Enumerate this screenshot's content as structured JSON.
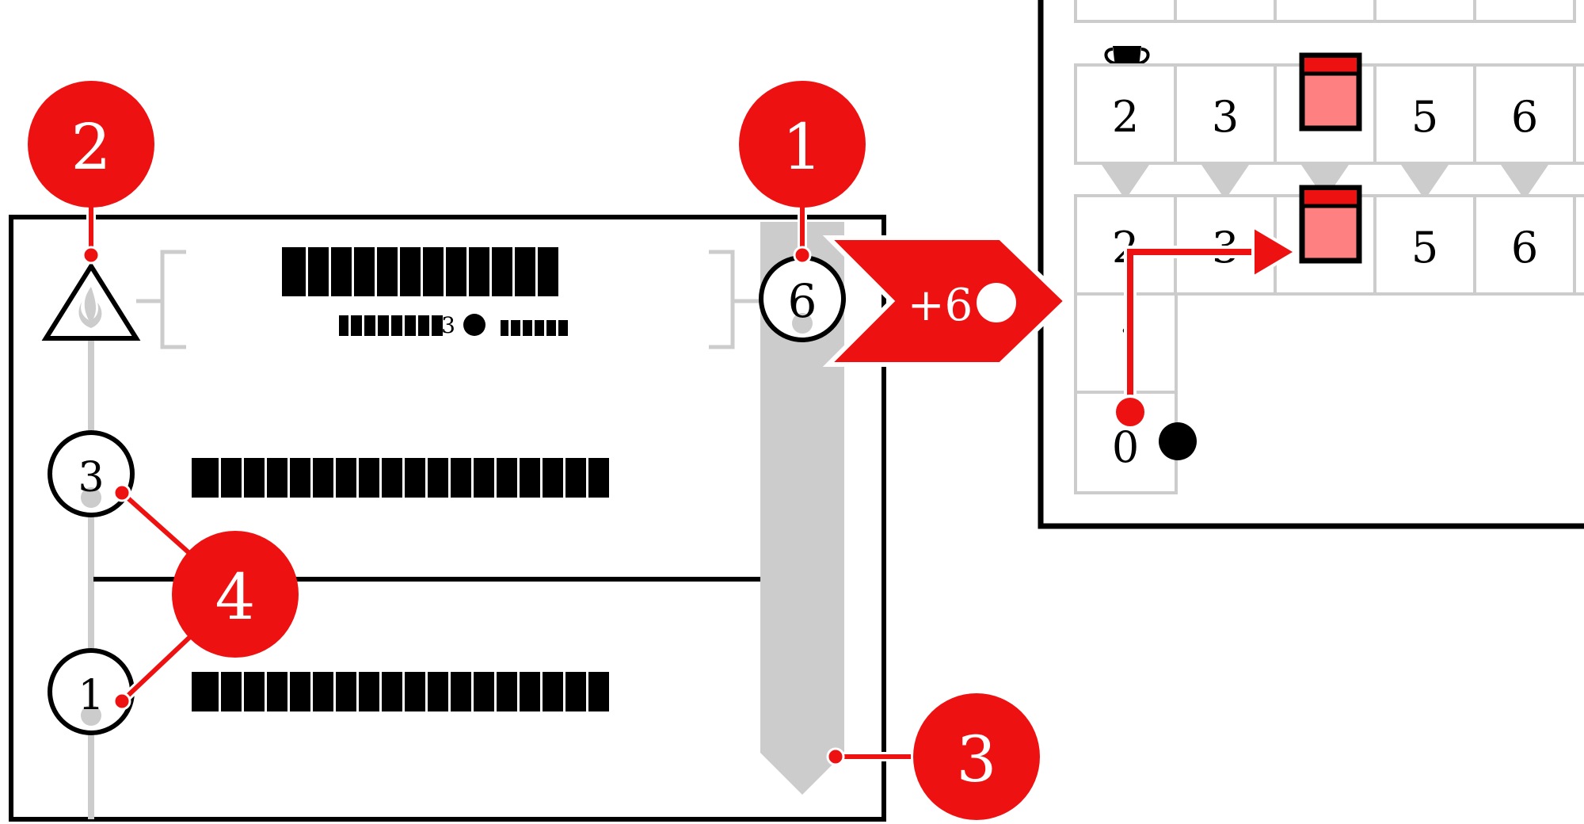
{
  "callouts": {
    "c1": "1",
    "c2": "2",
    "c3": "3",
    "c4": "4"
  },
  "card": {
    "top_cost": "6",
    "mid_cost": "3",
    "bottom_cost": "1",
    "subline_value": "3"
  },
  "reward_banner": {
    "text": "+6"
  },
  "track": {
    "top_row": [
      "2",
      "3",
      "",
      "5",
      "6"
    ],
    "second_row": [
      "2",
      "3",
      "",
      "5",
      "6"
    ],
    "start_value": "0"
  },
  "colors": {
    "accent": "#ee1111",
    "highlight_fill": "#ff8080",
    "gray": "#cccccc",
    "ink": "#000000"
  }
}
